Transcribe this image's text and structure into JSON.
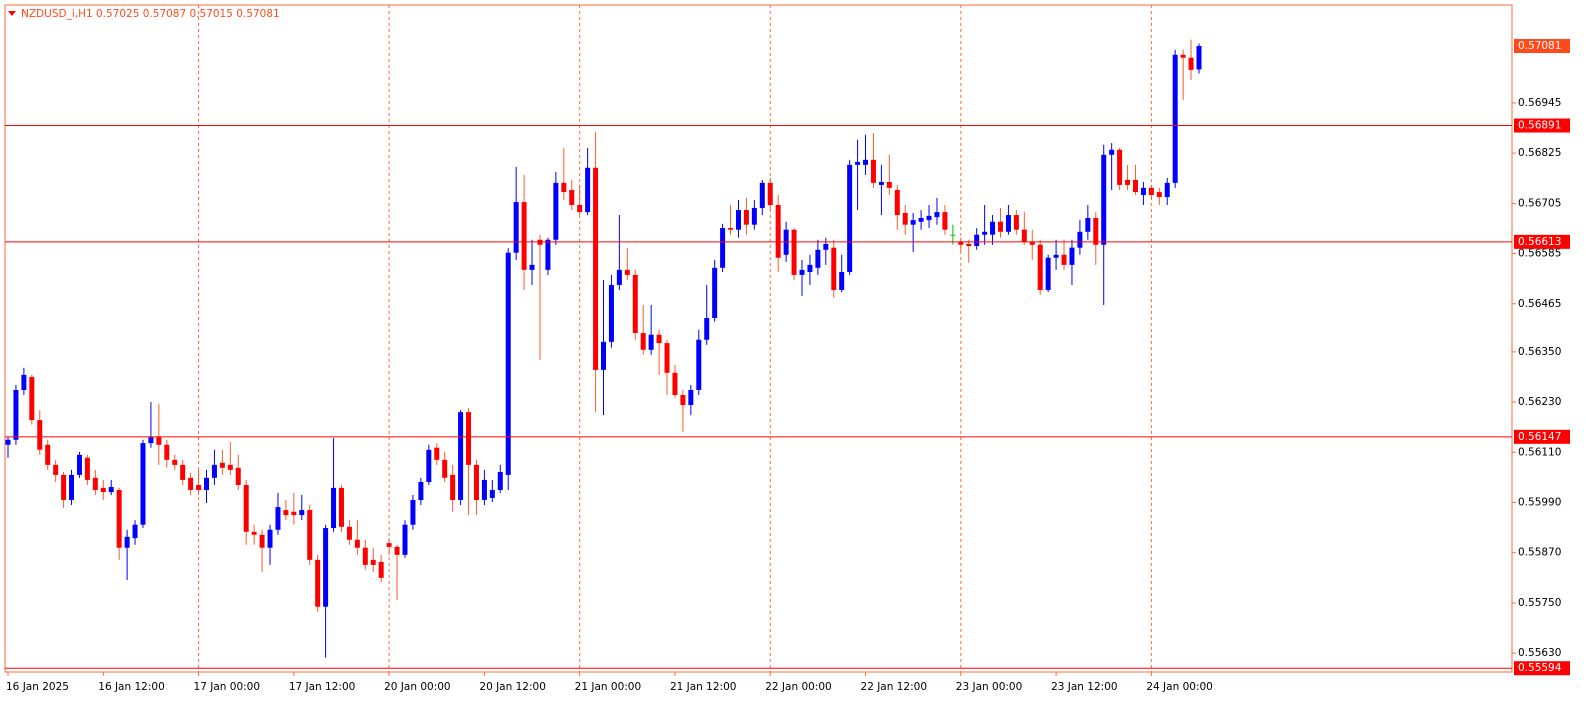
{
  "chart_data": {
    "type": "candlestick",
    "title": "NZDUSD_i,H1  0.57025 0.57087 0.57015 0.57081",
    "categories": [
      "16 Jan 2025",
      null,
      null,
      null,
      null,
      null,
      null,
      null,
      null,
      null,
      null,
      null,
      "16 Jan 12:00",
      null,
      null,
      null,
      null,
      null,
      null,
      null,
      null,
      null,
      null,
      null,
      "17 Jan 00:00",
      null,
      null,
      null,
      null,
      null,
      null,
      null,
      null,
      null,
      null,
      null,
      "17 Jan 12:00",
      null,
      null,
      null,
      null,
      null,
      null,
      null,
      null,
      null,
      null,
      null,
      "20 Jan 00:00",
      null,
      null,
      null,
      null,
      null,
      null,
      null,
      null,
      null,
      null,
      null,
      "20 Jan 12:00",
      null,
      null,
      null,
      null,
      null,
      null,
      null,
      null,
      null,
      null,
      null,
      "21 Jan 00:00",
      null,
      null,
      null,
      null,
      null,
      null,
      null,
      null,
      null,
      null,
      null,
      "21 Jan 12:00",
      null,
      null,
      null,
      null,
      null,
      null,
      null,
      null,
      null,
      null,
      null,
      "22 Jan 00:00",
      null,
      null,
      null,
      null,
      null,
      null,
      null,
      null,
      null,
      null,
      null,
      "22 Jan 12:00",
      null,
      null,
      null,
      null,
      null,
      null,
      null,
      null,
      null,
      null,
      null,
      "23 Jan 00:00",
      null,
      null,
      null,
      null,
      null,
      null,
      null,
      null,
      null,
      null,
      null,
      "23 Jan 12:00",
      null,
      null,
      null,
      null,
      null,
      null,
      null,
      null,
      null,
      null,
      null,
      "24 Jan 00:00",
      null,
      null,
      null,
      null,
      null,
      null
    ],
    "open": [
      0.56128,
      0.5614,
      0.56259,
      0.5629,
      0.56187,
      0.56128,
      0.5608,
      0.56056,
      0.55996,
      0.56056,
      0.56097,
      0.56049,
      0.56025,
      0.56015,
      0.5602,
      0.55882,
      0.55905,
      0.55937,
      0.56132,
      0.56147,
      0.56128,
      0.56092,
      0.5608,
      0.56049,
      0.56032,
      0.5602,
      0.56049,
      0.56085,
      0.5608,
      0.56073,
      0.56032,
      0.5592,
      0.55913,
      0.55882,
      0.55925,
      0.55972,
      0.55968,
      0.5596,
      0.55972,
      0.55853,
      0.55741,
      0.55929,
      0.56025,
      0.55932,
      0.55901,
      0.55882,
      0.55853,
      0.55848,
      0.55893,
      0.55884,
      0.55865,
      0.55937,
      0.55996,
      0.56039,
      0.56121,
      0.56092,
      0.56056,
      0.55996,
      0.56206,
      0.5608,
      0.55996,
      0.56001,
      0.5602,
      0.56056,
      0.56587,
      0.56708,
      0.56546,
      0.56618,
      0.56546,
      0.56618,
      0.56754,
      0.56737,
      0.56701,
      0.56684,
      0.5679,
      0.56307,
      0.56374,
      0.5651,
      0.56546,
      0.56534,
      0.56395,
      0.56355,
      0.56391,
      0.56371,
      0.563,
      0.56247,
      0.56223,
      0.56259,
      0.56379,
      0.56431,
      0.56551,
      0.56646,
      0.56642,
      0.56689,
      0.56654,
      0.56694,
      0.56754,
      0.56701,
      0.56582,
      0.56642,
      0.56534,
      0.56541,
      0.56551,
      0.56594,
      0.56599,
      0.56498,
      0.56541,
      0.56797,
      0.56797,
      0.56809,
      0.56749,
      0.56756,
      0.56737,
      0.56682,
      0.56654,
      0.56661,
      0.56665,
      0.56672,
      0.56684,
      0.5663,
      0.56613,
      0.56608,
      0.56603,
      0.5663,
      0.5663,
      0.56661,
      0.56637,
      0.56677,
      0.56642,
      0.56613,
      0.56606,
      0.56498,
      0.56575,
      0.56582,
      0.56558,
      0.56599,
      0.56637,
      0.5667,
      0.56606,
      0.56821,
      0.56833,
      0.56761,
      0.56761,
      0.56725,
      0.56742,
      0.56732,
      0.5672,
      0.56754,
      0.5706,
      0.57053,
      0.57025
    ],
    "high": [
      0.56147,
      0.56271,
      0.56312,
      0.56295,
      0.56211,
      0.5614,
      0.56092,
      0.56063,
      0.56068,
      0.56111,
      0.56104,
      0.56068,
      0.56044,
      0.56044,
      0.56025,
      0.55925,
      0.55948,
      0.5614,
      0.5623,
      0.56226,
      0.5614,
      0.56104,
      0.56092,
      0.56061,
      0.56068,
      0.56068,
      0.56116,
      0.56116,
      0.56135,
      0.56104,
      0.56044,
      0.55937,
      0.55925,
      0.55937,
      0.56013,
      0.55996,
      0.56013,
      0.56008,
      0.55984,
      0.55865,
      0.55937,
      0.56144,
      0.56032,
      0.55948,
      0.55948,
      0.55901,
      0.55882,
      0.55865,
      0.55905,
      0.55889,
      0.55948,
      0.56008,
      0.56049,
      0.56128,
      0.56132,
      0.56111,
      0.5608,
      0.56211,
      0.56216,
      0.56092,
      0.56068,
      0.56044,
      0.5608,
      0.56598,
      0.56792,
      0.56773,
      0.56618,
      0.5663,
      0.56623,
      0.5678,
      0.56837,
      0.56761,
      0.56749,
      0.56837,
      0.56876,
      0.56522,
      0.56534,
      0.56677,
      0.56598,
      0.56546,
      0.56462,
      0.56462,
      0.56403,
      0.56379,
      0.56319,
      0.56259,
      0.56271,
      0.56403,
      0.5651,
      0.5657,
      0.56656,
      0.56701,
      0.56713,
      0.56718,
      0.56713,
      0.56761,
      0.56766,
      0.56725,
      0.56661,
      0.56646,
      0.5657,
      0.56582,
      0.56618,
      0.56623,
      0.56618,
      0.56582,
      0.56809,
      0.56857,
      0.56869,
      0.56873,
      0.56797,
      0.56821,
      0.56749,
      0.56701,
      0.56682,
      0.56689,
      0.56701,
      0.56718,
      0.56701,
      0.56654,
      0.56623,
      0.56618,
      0.56646,
      0.56701,
      0.56677,
      0.56694,
      0.56701,
      0.56689,
      0.56684,
      0.56642,
      0.56618,
      0.56582,
      0.56618,
      0.56618,
      0.56618,
      0.56665,
      0.56701,
      0.56684,
      0.56845,
      0.56849,
      0.56837,
      0.56797,
      0.56797,
      0.56756,
      0.56749,
      0.56742,
      0.56766,
      0.57072,
      0.57072,
      0.57096,
      0.57087
    ],
    "low": [
      0.56097,
      0.56128,
      0.56247,
      0.56176,
      0.56104,
      0.56068,
      0.56039,
      0.55977,
      0.55984,
      0.56049,
      0.56032,
      0.56008,
      0.55996,
      0.56008,
      0.55853,
      0.55805,
      0.55889,
      0.55929,
      0.56121,
      0.5608,
      0.56073,
      0.56068,
      0.56032,
      0.56008,
      0.56008,
      0.55989,
      0.56032,
      0.56056,
      0.56056,
      0.5602,
      0.55889,
      0.55889,
      0.55824,
      0.55841,
      0.55913,
      0.55948,
      0.55937,
      0.55948,
      0.55841,
      0.55729,
      0.55619,
      0.5592,
      0.5592,
      0.55889,
      0.55865,
      0.55829,
      0.55824,
      0.558,
      0.55865,
      0.55757,
      0.55858,
      0.55925,
      0.55984,
      0.56032,
      0.5608,
      0.56039,
      0.55968,
      0.55984,
      0.5596,
      0.5596,
      0.55984,
      0.55991,
      0.56013,
      0.5602,
      0.5657,
      0.56498,
      0.5651,
      0.56331,
      0.56534,
      0.56606,
      0.56713,
      0.56689,
      0.56677,
      0.56677,
      0.56206,
      0.56199,
      0.5636,
      0.56498,
      0.56522,
      0.56379,
      0.56343,
      0.56343,
      0.56295,
      0.56247,
      0.5624,
      0.56159,
      0.56199,
      0.56247,
      0.56367,
      0.56422,
      0.56541,
      0.5663,
      0.56623,
      0.5663,
      0.56642,
      0.56677,
      0.56689,
      0.56541,
      0.56565,
      0.56522,
      0.56484,
      0.5651,
      0.56534,
      0.56558,
      0.56479,
      0.56493,
      0.56534,
      0.56689,
      0.56773,
      0.56742,
      0.56677,
      0.56725,
      0.56642,
      0.5663,
      0.56589,
      0.56642,
      0.56646,
      0.56654,
      0.5663,
      0.56606,
      0.56589,
      0.56563,
      0.56594,
      0.56606,
      0.56606,
      0.56623,
      0.5663,
      0.5663,
      0.56606,
      0.5657,
      0.56486,
      0.56493,
      0.56546,
      0.56546,
      0.5651,
      0.56582,
      0.56618,
      0.56558,
      0.56462,
      0.56737,
      0.56737,
      0.56737,
      0.56725,
      0.56701,
      0.56713,
      0.56701,
      0.56701,
      0.56742,
      0.56952,
      0.57,
      0.57015
    ],
    "close": [
      0.5614,
      0.56259,
      0.56295,
      0.56187,
      0.56116,
      0.5608,
      0.56056,
      0.55996,
      0.56056,
      0.56104,
      0.56044,
      0.5602,
      0.56015,
      0.56027,
      0.55882,
      0.55908,
      0.55937,
      0.56132,
      0.56147,
      0.56128,
      0.56092,
      0.5608,
      0.56044,
      0.5602,
      0.5602,
      0.56049,
      0.5608,
      0.56073,
      0.56068,
      0.56032,
      0.5592,
      0.55913,
      0.55882,
      0.55925,
      0.55979,
      0.5596,
      0.5596,
      0.55972,
      0.55853,
      0.55741,
      0.55929,
      0.56025,
      0.55932,
      0.55901,
      0.55882,
      0.55841,
      0.55841,
      0.5581,
      0.55884,
      0.55865,
      0.55937,
      0.55996,
      0.56039,
      0.56116,
      0.56092,
      0.56049,
      0.55996,
      0.56206,
      0.5608,
      0.55996,
      0.56044,
      0.5602,
      0.56063,
      0.56587,
      0.56708,
      0.56546,
      0.56558,
      0.56606,
      0.56618,
      0.56754,
      0.56732,
      0.56701,
      0.56684,
      0.5679,
      0.56307,
      0.56374,
      0.5651,
      0.56546,
      0.56534,
      0.56395,
      0.56355,
      0.56391,
      0.56371,
      0.563,
      0.56247,
      0.56223,
      0.56259,
      0.56379,
      0.56431,
      0.56551,
      0.56646,
      0.56642,
      0.56689,
      0.56654,
      0.56694,
      0.56754,
      0.56701,
      0.56575,
      0.56642,
      0.56534,
      0.56546,
      0.56558,
      0.56594,
      0.56608,
      0.56498,
      0.56541,
      0.56797,
      0.56804,
      0.56809,
      0.56754,
      0.56756,
      0.56742,
      0.56677,
      0.56654,
      0.56665,
      0.5667,
      0.56675,
      0.56684,
      0.56642,
      0.5663,
      0.56606,
      0.56603,
      0.5663,
      0.56637,
      0.56661,
      0.56637,
      0.56677,
      0.56642,
      0.56613,
      0.56606,
      0.56498,
      0.56575,
      0.56582,
      0.56558,
      0.56599,
      0.56637,
      0.5667,
      0.56606,
      0.56821,
      0.56833,
      0.56749,
      0.56749,
      0.56732,
      0.56742,
      0.56725,
      0.5672,
      0.56754,
      0.5706,
      0.57053,
      0.57024,
      0.57081
    ],
    "ylim": [
      0.55585,
      0.57179
    ],
    "yticks": [
      0.56945,
      0.56825,
      0.56705,
      0.56585,
      0.56465,
      {
        "value": 0.5635,
        "label": "0.56350"
      },
      {
        "value": 0.5623,
        "label": "0.56230"
      },
      {
        "value": 0.5611,
        "label": "0.56110"
      },
      {
        "value": 0.5599,
        "label": "0.55990"
      },
      {
        "value": 0.5587,
        "label": "0.55870"
      },
      {
        "value": 0.5575,
        "label": "0.55750"
      },
      {
        "value": 0.5563,
        "label": "0.55630"
      }
    ],
    "levels": [
      0.56891,
      0.56613,
      0.56147,
      0.55594
    ],
    "level_color": "#ff0000",
    "price_label_color": "#ff4a1c",
    "up_color": "#0000ff",
    "down_color": "#ff0000",
    "down_wick_color": "#ff5a2a",
    "doji_color": "#00c000",
    "frame_color": "#ff6a3d",
    "grid": true
  }
}
